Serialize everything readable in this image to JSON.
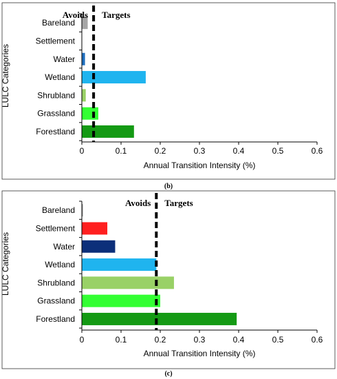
{
  "panels": [
    {
      "caption": "(b)"
    },
    {
      "caption": "(c)"
    }
  ],
  "chart_data": [
    {
      "type": "bar",
      "orientation": "horizontal",
      "categories": [
        "Bareland",
        "Settlement",
        "Water",
        "Wetland",
        "Shrubland",
        "Grassland",
        "Forestland"
      ],
      "values": [
        0.015,
        0.0,
        0.008,
        0.163,
        0.01,
        0.042,
        0.133
      ],
      "colors": [
        "#a6a6a6",
        "#ffffff",
        "#1f6fbf",
        "#1fb4ef",
        "#99d166",
        "#33ff33",
        "#149a14"
      ],
      "xlabel": "Annual Transition Intensity (%)",
      "ylabel": "LULC Categories",
      "xlim": [
        0,
        0.6
      ],
      "xticks": [
        "0",
        "0.1",
        "0.2",
        "0.3",
        "0.4",
        "0.5",
        "0.6"
      ],
      "uniform_intensity": 0.03,
      "avoids_label": "Avoids",
      "targets_label": "Targets",
      "grid": false
    },
    {
      "type": "bar",
      "orientation": "horizontal",
      "categories": [
        "Bareland",
        "Settlement",
        "Water",
        "Wetland",
        "Shrubland",
        "Grassland",
        "Forestland"
      ],
      "values": [
        0.003,
        0.065,
        0.085,
        0.19,
        0.235,
        0.2,
        0.395
      ],
      "colors": [
        "#a6a6a6",
        "#ff2020",
        "#0c2f7a",
        "#1fb4ef",
        "#99d166",
        "#33ff33",
        "#149a14"
      ],
      "xlabel": "Annual Transition  Intensity  (%)",
      "ylabel": "LULC Categories",
      "xlim": [
        0,
        0.6
      ],
      "xticks": [
        "0",
        "0.1",
        "0.2",
        "0.3",
        "0.4",
        "0.5",
        "0.6"
      ],
      "uniform_intensity": 0.19,
      "avoids_label": "Avoids",
      "targets_label": "Targets",
      "grid": false
    }
  ]
}
